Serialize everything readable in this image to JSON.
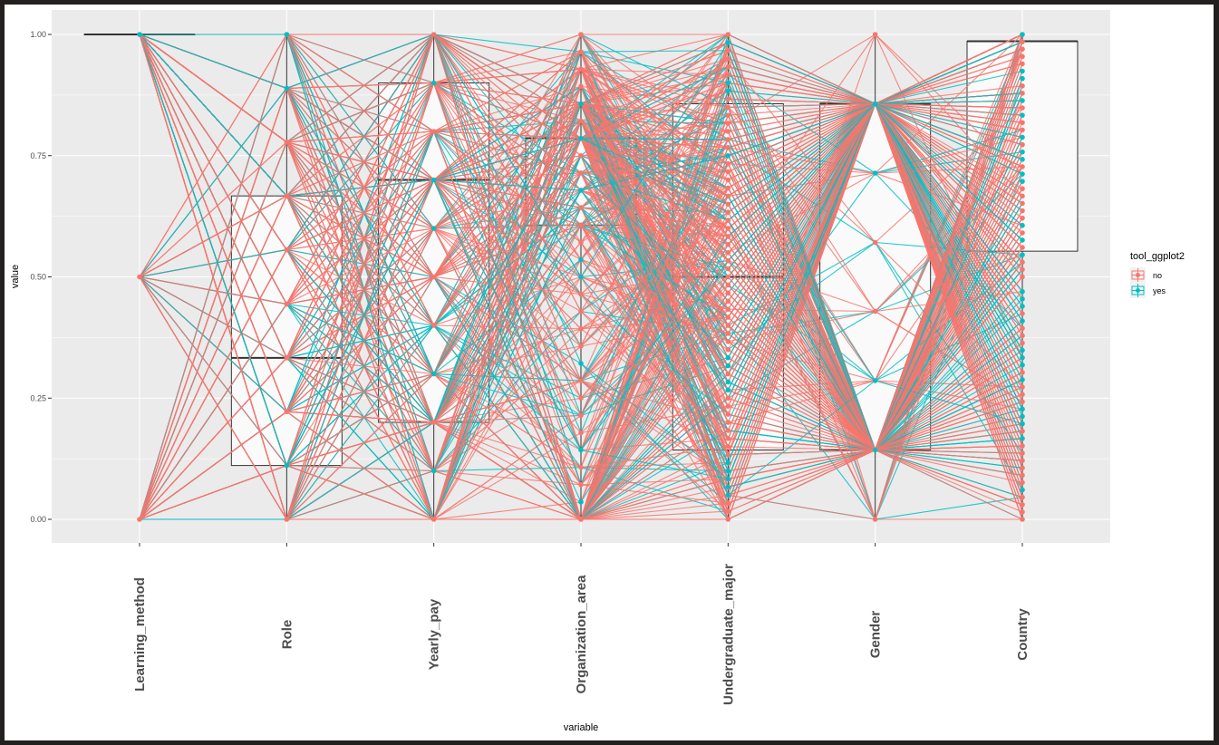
{
  "chart_data": {
    "type": "parallel-coordinates",
    "title": "",
    "xlabel": "variable",
    "ylabel": "value",
    "ylim": [
      -0.05,
      1.05
    ],
    "yticks": [
      "0.00",
      "0.25",
      "0.50",
      "0.75",
      "1.00"
    ],
    "ytick_values": [
      0,
      0.25,
      0.5,
      0.75,
      1.0
    ],
    "grid": true,
    "categories": [
      "Learning_method",
      "Role",
      "Yearly_pay",
      "Organization_area",
      "Undergraduate_major",
      "Gender",
      "Country"
    ],
    "legend": {
      "title": "tool_ggplot2",
      "position": "right",
      "entries": [
        {
          "label": "no",
          "color": "#F8766D"
        },
        {
          "label": "yes",
          "color": "#00BFC4"
        }
      ]
    },
    "boxplots": [
      {
        "variable": "Learning_method",
        "q1": 1.0,
        "median": 1.0,
        "q3": 1.0,
        "whisker_low": 1.0,
        "whisker_high": 1.0
      },
      {
        "variable": "Role",
        "q1": 0.111,
        "median": 0.333,
        "q3": 0.667,
        "whisker_low": 0.0,
        "whisker_high": 1.0
      },
      {
        "variable": "Yearly_pay",
        "q1": 0.2,
        "median": 0.7,
        "q3": 0.9,
        "whisker_low": 0.0,
        "whisker_high": 1.0
      },
      {
        "variable": "Organization_area",
        "q1": 0.607,
        "median": 0.786,
        "q3": 0.786,
        "whisker_low": 0.0,
        "whisker_high": 1.0
      },
      {
        "variable": "Undergraduate_major",
        "q1": 0.143,
        "median": 0.5,
        "q3": 0.857,
        "whisker_low": 0.0,
        "whisker_high": 1.0
      },
      {
        "variable": "Gender",
        "q1": 0.143,
        "median": 0.857,
        "q3": 0.857,
        "whisker_low": 0.0,
        "whisker_high": 1.0
      },
      {
        "variable": "Country",
        "q1": 0.553,
        "median": 0.986,
        "q3": 0.986,
        "whisker_low": 0.0,
        "whisker_high": 1.0
      }
    ],
    "value_levels": {
      "Learning_method": [
        0,
        0.5,
        1.0
      ],
      "Role": [
        0,
        0.111,
        0.222,
        0.333,
        0.444,
        0.556,
        0.667,
        0.778,
        0.889,
        1.0
      ],
      "Yearly_pay": [
        0,
        0.1,
        0.2,
        0.3,
        0.4,
        0.5,
        0.6,
        0.7,
        0.8,
        0.9,
        1.0
      ],
      "Organization_area": "k/28 for k=0..28",
      "Undergraduate_major": "k/60 for k=0..60",
      "Gender": [
        0,
        0.143,
        0.286,
        0.429,
        0.571,
        0.714,
        0.857,
        1.0
      ],
      "Country": "k/66 for k=0..66"
    },
    "series": [
      {
        "name": "no",
        "color": "#F8766D"
      },
      {
        "name": "yes",
        "color": "#00BFC4"
      }
    ]
  }
}
